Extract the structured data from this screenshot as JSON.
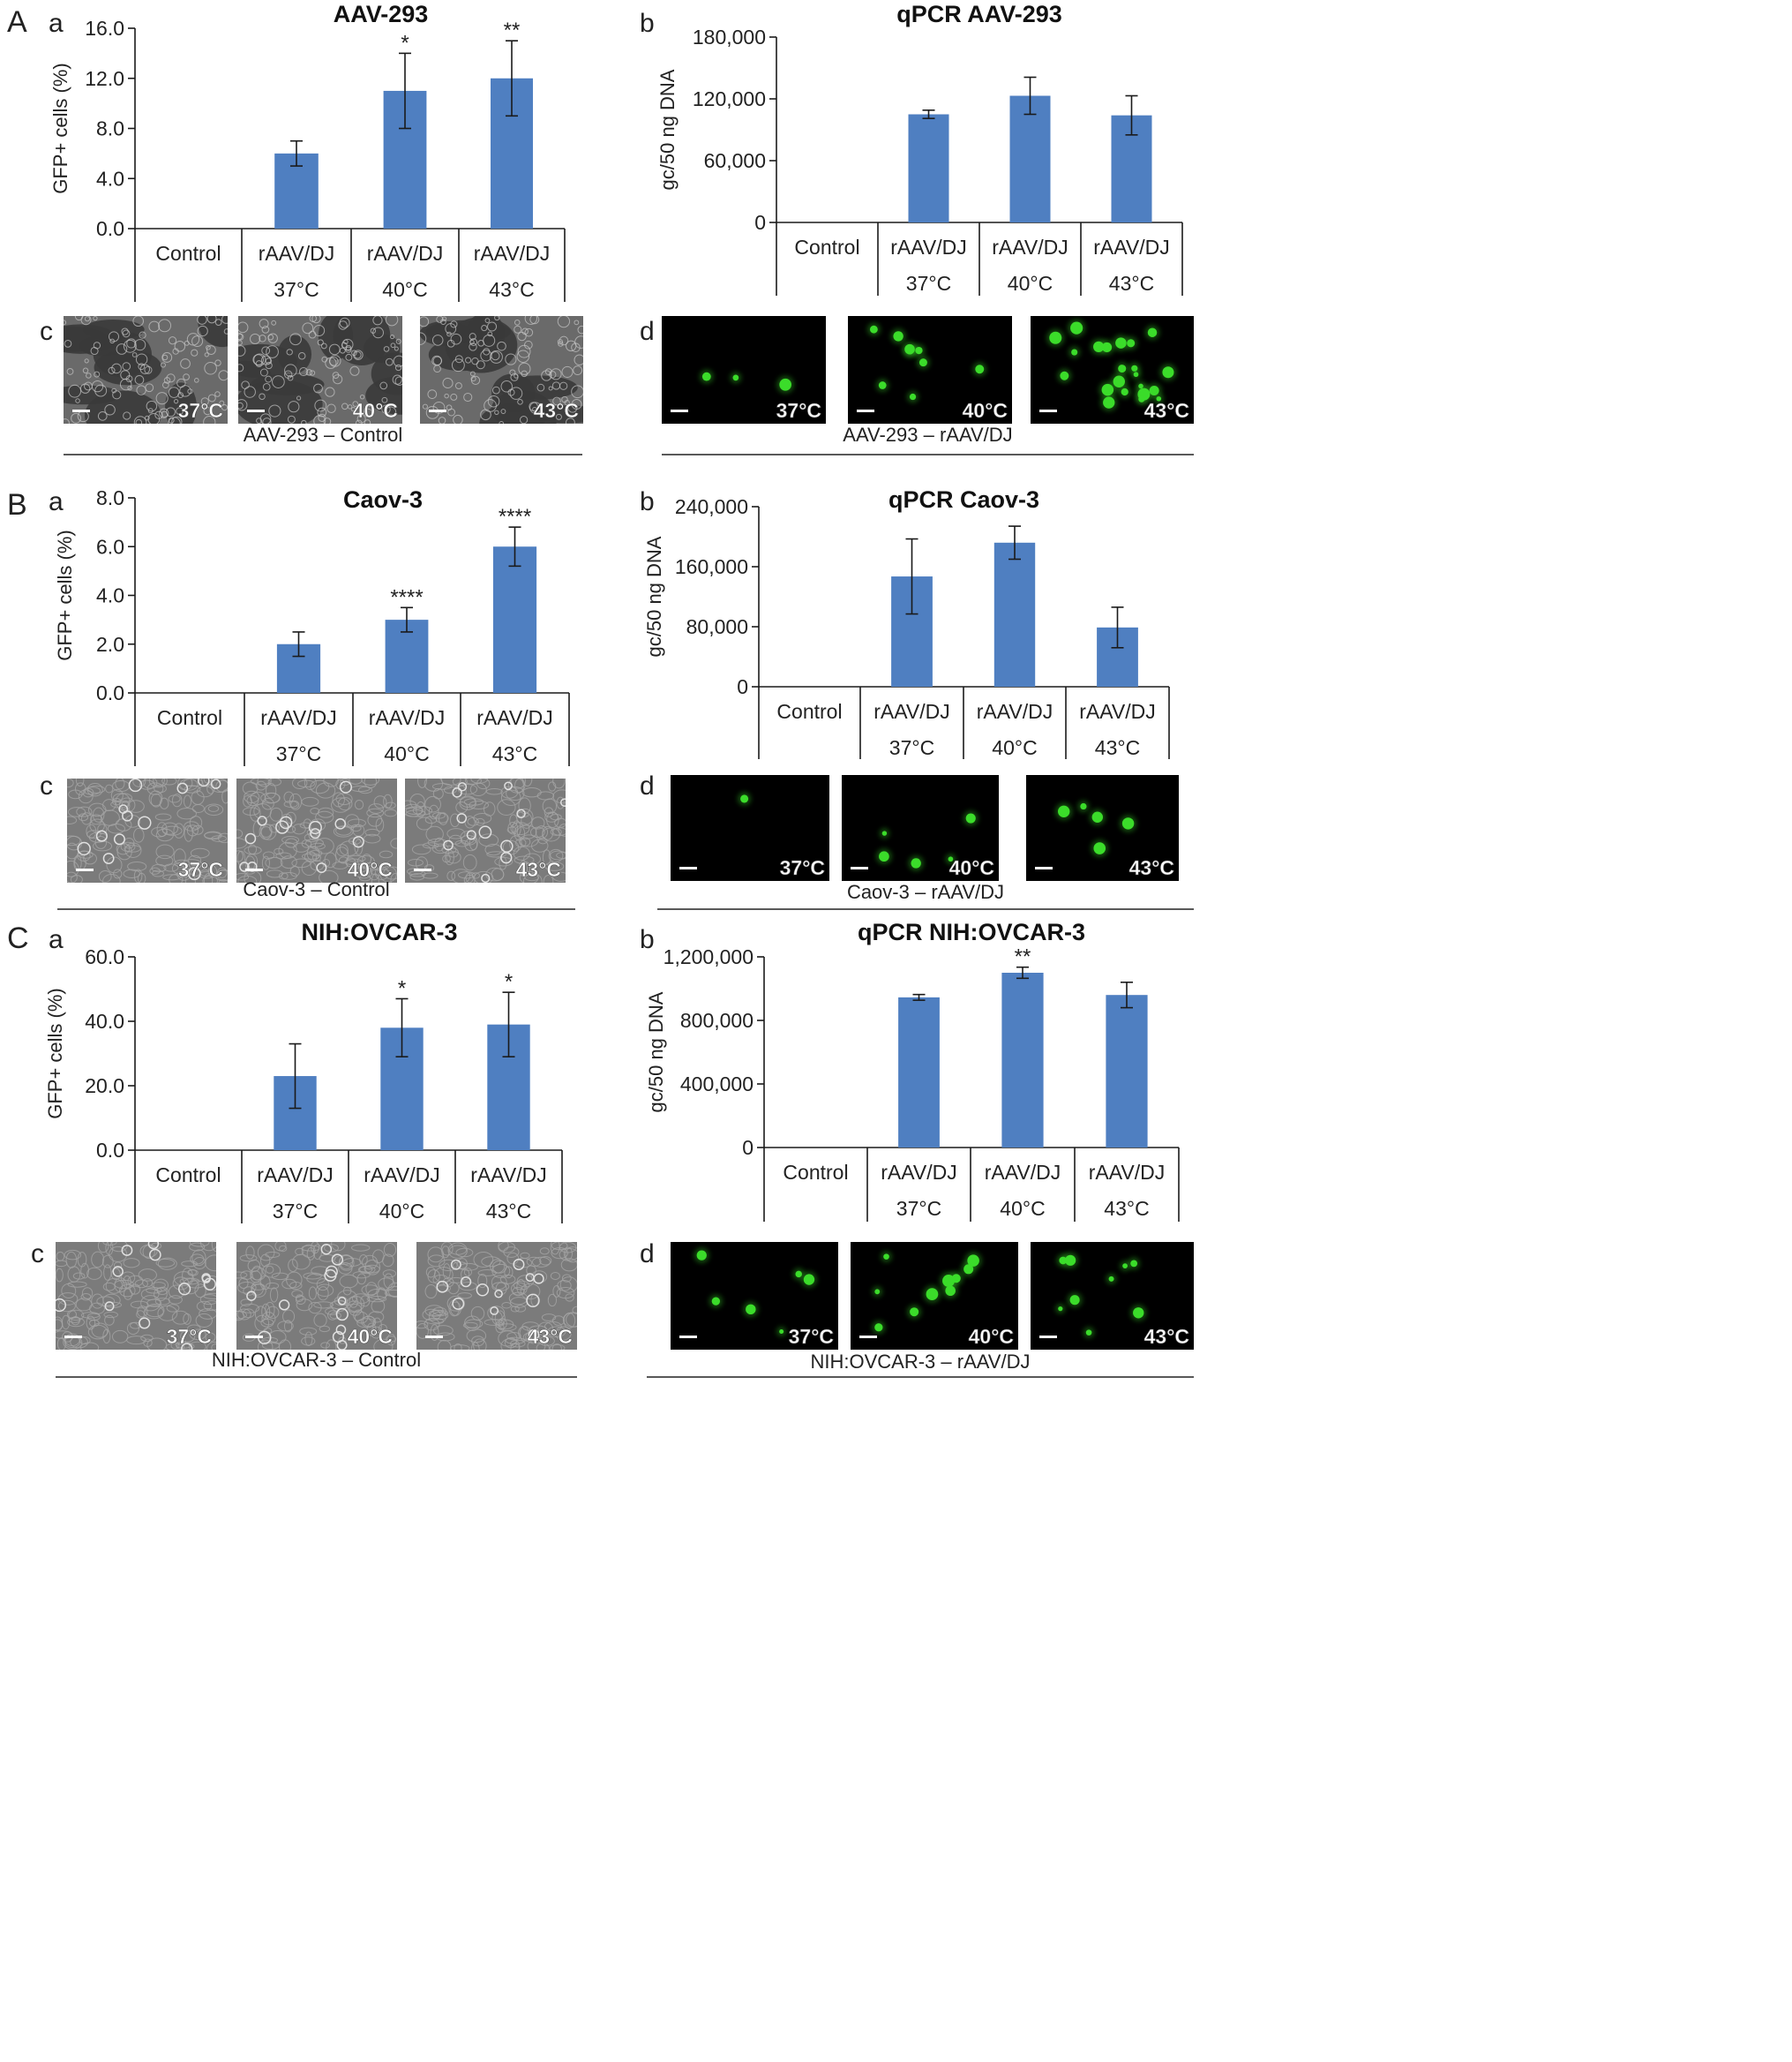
{
  "colors": {
    "bar": "#4f7fc1",
    "bar_stroke": "#3f6fae",
    "axis": "#1a1a1a",
    "phase_bg": "#7a7a7a",
    "fluor_bg": "#000000",
    "gfp": "#3bdc2a",
    "scale_label": "#ffffff"
  },
  "panels": [
    {
      "id": "A",
      "panel_letter": "A",
      "charts": [
        {
          "sub_letter": "a",
          "chart_data": {
            "type": "bar",
            "title": "AAV-293",
            "ylabel": "GFP+ cells (%)",
            "ylim": [
              0,
              16
            ],
            "yticks": [
              "0.0",
              "4.0",
              "8.0",
              "12.0",
              "16.0"
            ],
            "ytick_values": [
              0,
              4,
              8,
              12,
              16
            ],
            "categories": [
              [
                "Control"
              ],
              [
                "rAAV/DJ",
                "37°C"
              ],
              [
                "rAAV/DJ",
                "40°C"
              ],
              [
                "rAAV/DJ",
                "43°C"
              ]
            ],
            "values": [
              0,
              6,
              11,
              12
            ],
            "errors": [
              0,
              1,
              3,
              3
            ],
            "significance": [
              "",
              "",
              "*",
              "**"
            ]
          }
        },
        {
          "sub_letter": "b",
          "chart_data": {
            "type": "bar",
            "title": "qPCR AAV-293",
            "ylabel": "gc/50 ng DNA",
            "ylim": [
              0,
              180000
            ],
            "yticks": [
              "0",
              "60,000",
              "120,000",
              "180,000"
            ],
            "ytick_values": [
              0,
              60000,
              120000,
              180000
            ],
            "categories": [
              [
                "Control"
              ],
              [
                "rAAV/DJ",
                "37°C"
              ],
              [
                "rAAV/DJ",
                "40°C"
              ],
              [
                "rAAV/DJ",
                "43°C"
              ]
            ],
            "values": [
              0,
              105000,
              123000,
              104000
            ],
            "errors": [
              0,
              4000,
              18000,
              19000
            ],
            "significance": [
              "",
              "",
              "",
              ""
            ]
          }
        }
      ],
      "micrographs": [
        {
          "sub_letter": "c",
          "kind": "phase",
          "caption": "AAV-293 – Control",
          "images": [
            {
              "label": "37°C"
            },
            {
              "label": "40°C"
            },
            {
              "label": "43°C"
            }
          ]
        },
        {
          "sub_letter": "d",
          "kind": "fluor",
          "caption": "AAV-293 – rAAV/DJ",
          "images": [
            {
              "label": "37°C"
            },
            {
              "label": "40°C"
            },
            {
              "label": "43°C"
            }
          ]
        }
      ]
    },
    {
      "id": "B",
      "panel_letter": "B",
      "charts": [
        {
          "sub_letter": "a",
          "chart_data": {
            "type": "bar",
            "title": "Caov-3",
            "ylabel": "GFP+ cells (%)",
            "ylim": [
              0,
              8
            ],
            "yticks": [
              "0.0",
              "2.0",
              "4.0",
              "6.0",
              "8.0"
            ],
            "ytick_values": [
              0,
              2,
              4,
              6,
              8
            ],
            "categories": [
              [
                "Control"
              ],
              [
                "rAAV/DJ",
                "37°C"
              ],
              [
                "rAAV/DJ",
                "40°C"
              ],
              [
                "rAAV/DJ",
                "43°C"
              ]
            ],
            "values": [
              0,
              2,
              3,
              6
            ],
            "errors": [
              0,
              0.5,
              0.5,
              0.8
            ],
            "significance": [
              "",
              "",
              "****",
              "****"
            ]
          }
        },
        {
          "sub_letter": "b",
          "chart_data": {
            "type": "bar",
            "title": "qPCR Caov-3",
            "ylabel": "gc/50 ng DNA",
            "ylim": [
              0,
              240000
            ],
            "yticks": [
              "0",
              "80,000",
              "160,000",
              "240,000"
            ],
            "ytick_values": [
              0,
              80000,
              160000,
              240000
            ],
            "categories": [
              [
                "Control"
              ],
              [
                "rAAV/DJ",
                "37°C"
              ],
              [
                "rAAV/DJ",
                "40°C"
              ],
              [
                "rAAV/DJ",
                "43°C"
              ]
            ],
            "values": [
              0,
              147000,
              192000,
              79000
            ],
            "errors": [
              0,
              50000,
              22000,
              27000
            ],
            "significance": [
              "",
              "",
              "",
              ""
            ]
          }
        }
      ],
      "micrographs": [
        {
          "sub_letter": "c",
          "kind": "phase",
          "caption": "Caov-3 – Control",
          "images": [
            {
              "label": "37°C"
            },
            {
              "label": "40°C"
            },
            {
              "label": "43°C"
            }
          ]
        },
        {
          "sub_letter": "d",
          "kind": "fluor",
          "caption": "Caov-3 – rAAV/DJ",
          "images": [
            {
              "label": "37°C"
            },
            {
              "label": "40°C"
            },
            {
              "label": "43°C"
            }
          ]
        }
      ]
    },
    {
      "id": "C",
      "panel_letter": "C",
      "charts": [
        {
          "sub_letter": "a",
          "chart_data": {
            "type": "bar",
            "title": "NIH:OVCAR-3",
            "ylabel": "GFP+ cells (%)",
            "ylim": [
              0,
              60
            ],
            "yticks": [
              "0.0",
              "20.0",
              "40.0",
              "60.0"
            ],
            "ytick_values": [
              0,
              20,
              40,
              60
            ],
            "categories": [
              [
                "Control"
              ],
              [
                "rAAV/DJ",
                "37°C"
              ],
              [
                "rAAV/DJ",
                "40°C"
              ],
              [
                "rAAV/DJ",
                "43°C"
              ]
            ],
            "values": [
              0,
              23,
              38,
              39
            ],
            "errors": [
              0,
              10,
              9,
              10
            ],
            "significance": [
              "",
              "",
              "*",
              "*"
            ]
          }
        },
        {
          "sub_letter": "b",
          "chart_data": {
            "type": "bar",
            "title": "qPCR NIH:OVCAR-3",
            "ylabel": "gc/50 ng DNA",
            "ylim": [
              0,
              1200000
            ],
            "yticks": [
              "0",
              "400,000",
              "800,000",
              "1,200,000"
            ],
            "ytick_values": [
              0,
              400000,
              800000,
              1200000
            ],
            "categories": [
              [
                "Control"
              ],
              [
                "rAAV/DJ",
                "37°C"
              ],
              [
                "rAAV/DJ",
                "40°C"
              ],
              [
                "rAAV/DJ",
                "43°C"
              ]
            ],
            "values": [
              0,
              945000,
              1100000,
              960000
            ],
            "errors": [
              0,
              18000,
              35000,
              80000
            ],
            "significance": [
              "",
              "",
              "**",
              ""
            ]
          }
        }
      ],
      "micrographs": [
        {
          "sub_letter": "c",
          "kind": "phase",
          "caption": "NIH:OVCAR-3 – Control",
          "images": [
            {
              "label": "37°C"
            },
            {
              "label": "40°C"
            },
            {
              "label": "43°C"
            }
          ]
        },
        {
          "sub_letter": "d",
          "kind": "fluor",
          "caption": "NIH:OVCAR-3 – rAAV/DJ",
          "images": [
            {
              "label": "37°C"
            },
            {
              "label": "40°C"
            },
            {
              "label": "43°C"
            }
          ]
        }
      ]
    }
  ]
}
